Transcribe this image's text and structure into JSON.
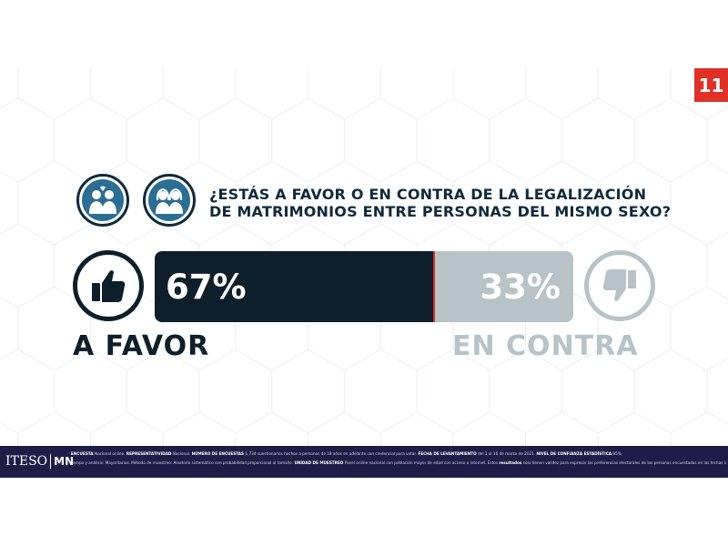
{
  "page_number": "11",
  "question": {
    "line1": "¿ESTÁS A FAVOR O EN CONTRA DE LA LEGALIZACIÓN",
    "line2": "DE MATRIMONIOS ENTRE PERSONAS DEL MISMO SEXO?"
  },
  "icons": {
    "couple_left": "male-couple-icon",
    "couple_right": "female-couple-icon",
    "favor": "thumbs-up-icon",
    "contra": "thumbs-down-icon"
  },
  "results": {
    "favor_percent": 67,
    "favor_label_pct": "67%",
    "contra_percent": 33,
    "contra_label_pct": "33%",
    "favor_label": "A FAVOR",
    "contra_label": "EN CONTRA"
  },
  "colors": {
    "favor": "#0d1f2a",
    "contra": "#b7c3c6",
    "accent": "#e03127",
    "icon_fill": "#2c6e93",
    "footer": "#1f1d48"
  },
  "footer": {
    "logo_left": "ITESO",
    "logo_right": "MN",
    "line1": [
      {
        "k": "ENCUESTA",
        "v": "Nacional online."
      },
      {
        "k": "REPRESENTATIVIDAD",
        "v": "Nacional."
      },
      {
        "k": "NÚMERO DE ENCUESTAS",
        "v": "1,734 cuestionarios hechos a personas de 18 años en adelante con credencial para votar."
      },
      {
        "k": "FECHA DE LEVANTAMIENTO",
        "v": "del 1 al 16 de marzo de 2021."
      },
      {
        "k": "NIVEL DE CONFIANZA ESTADÍSTICA",
        "v": "95%"
      }
    ],
    "line2": [
      {
        "k": "",
        "v": "campo y análisis: Mayoritarios. Método de muestreo: Aleatorio sistemático con probabilidad proporcional al tamaño."
      },
      {
        "k": "UNIDAD DE MUESTREO",
        "v": "Panel online nacional con población mayor de edad con acceso a internet."
      },
      {
        "k": "",
        "v": "Estos"
      },
      {
        "k": "resultados",
        "v": "solo tienen validez para expresar las preferencias electorales de las personas encuestadas en las fechas indicadas en el ejercicio."
      }
    ]
  }
}
